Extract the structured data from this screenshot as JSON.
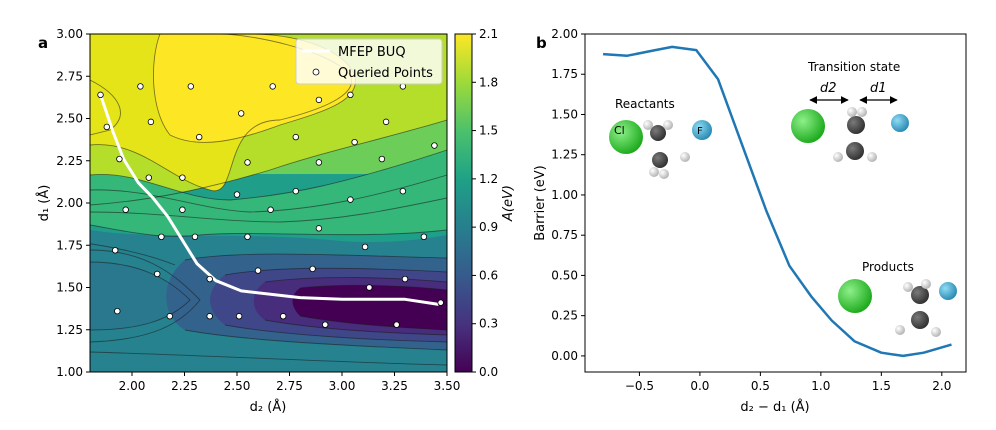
{
  "chart_data": [
    {
      "panel_label": "a",
      "type": "contour",
      "xlabel": "d₂ (Å)",
      "ylabel": "d₁ (Å)",
      "xlim": [
        1.8,
        3.5
      ],
      "ylim": [
        1.0,
        3.0
      ],
      "xticks": [
        "2.00",
        "2.25",
        "2.50",
        "2.75",
        "3.00",
        "3.25",
        "3.50"
      ],
      "yticks": [
        "1.00",
        "1.25",
        "1.50",
        "1.75",
        "2.00",
        "2.25",
        "2.50",
        "2.75",
        "3.00"
      ],
      "colorbar": {
        "label": "A(eV)",
        "range": [
          0.0,
          2.1
        ],
        "ticks": [
          "0.0",
          "0.3",
          "0.6",
          "0.9",
          "1.2",
          "1.5",
          "1.8",
          "2.1"
        ],
        "colormap": "viridis"
      },
      "legend": {
        "position": "top-right",
        "entries": [
          "MFEP BUQ",
          "Queried Points"
        ]
      },
      "series": [
        {
          "name": "MFEP BUQ",
          "kind": "line",
          "color": "#ffffff",
          "points": [
            [
              1.85,
              2.64
            ],
            [
              1.91,
              2.42
            ],
            [
              1.96,
              2.26
            ],
            [
              2.03,
              2.12
            ],
            [
              2.1,
              2.03
            ],
            [
              2.17,
              1.92
            ],
            [
              2.24,
              1.78
            ],
            [
              2.31,
              1.64
            ],
            [
              2.4,
              1.54
            ],
            [
              2.52,
              1.48
            ],
            [
              2.8,
              1.44
            ],
            [
              3.0,
              1.43
            ],
            [
              3.3,
              1.43
            ],
            [
              3.46,
              1.4
            ]
          ]
        },
        {
          "name": "Queried Points",
          "kind": "scatter",
          "color": "#ffffff",
          "points": [
            [
              1.85,
              2.64
            ],
            [
              1.88,
              2.45
            ],
            [
              1.94,
              2.26
            ],
            [
              2.04,
              2.69
            ],
            [
              2.09,
              2.48
            ],
            [
              2.08,
              2.15
            ],
            [
              1.97,
              1.96
            ],
            [
              2.28,
              2.69
            ],
            [
              2.32,
              2.39
            ],
            [
              2.24,
              2.15
            ],
            [
              2.24,
              1.96
            ],
            [
              2.52,
              2.53
            ],
            [
              2.55,
              2.24
            ],
            [
              2.5,
              2.05
            ],
            [
              2.67,
              2.69
            ],
            [
              2.78,
              2.39
            ],
            [
              2.89,
              2.61
            ],
            [
              2.89,
              2.24
            ],
            [
              3.04,
              2.64
            ],
            [
              3.06,
              2.36
            ],
            [
              3.19,
              2.26
            ],
            [
              3.21,
              2.48
            ],
            [
              3.29,
              2.69
            ],
            [
              3.44,
              2.34
            ],
            [
              1.92,
              1.72
            ],
            [
              2.12,
              1.58
            ],
            [
              2.14,
              1.8
            ],
            [
              2.3,
              1.8
            ],
            [
              2.37,
              1.55
            ],
            [
              2.55,
              1.8
            ],
            [
              2.66,
              1.96
            ],
            [
              2.78,
              2.07
            ],
            [
              2.89,
              1.85
            ],
            [
              3.04,
              2.02
            ],
            [
              3.29,
              2.07
            ],
            [
              3.11,
              1.74
            ],
            [
              3.39,
              1.8
            ],
            [
              2.6,
              1.6
            ],
            [
              2.86,
              1.61
            ],
            [
              3.13,
              1.5
            ],
            [
              3.3,
              1.55
            ],
            [
              3.47,
              1.41
            ],
            [
              1.93,
              1.36
            ],
            [
              2.18,
              1.33
            ],
            [
              2.37,
              1.33
            ],
            [
              2.51,
              1.33
            ],
            [
              2.72,
              1.33
            ],
            [
              2.92,
              1.28
            ],
            [
              3.26,
              1.28
            ]
          ]
        }
      ]
    },
    {
      "panel_label": "b",
      "type": "line",
      "xlabel": "d₂ − d₁ (Å)",
      "ylabel": "Barrier (eV)",
      "xlim": [
        -0.95,
        2.2
      ],
      "ylim": [
        -0.1,
        2.0
      ],
      "xticks": [
        "−0.5",
        "0.0",
        "0.5",
        "1.0",
        "1.5",
        "2.0"
      ],
      "yticks": [
        "0.00",
        "0.25",
        "0.50",
        "0.75",
        "1.00",
        "1.25",
        "1.50",
        "1.75",
        "2.00"
      ],
      "series": [
        {
          "name": "",
          "color": "#1f77b4",
          "x": [
            -0.8,
            -0.6,
            -0.4,
            -0.23,
            -0.03,
            0.15,
            0.33,
            0.55,
            0.74,
            0.92,
            1.09,
            1.28,
            1.5,
            1.68,
            1.85,
            2.08
          ],
          "y": [
            1.875,
            1.865,
            1.895,
            1.92,
            1.9,
            1.72,
            1.35,
            0.9,
            0.56,
            0.37,
            0.22,
            0.09,
            0.02,
            0.0,
            0.02,
            0.07
          ]
        }
      ],
      "annotations": {
        "reactants": "Reactants",
        "transition_state": "Transition state",
        "products": "Products",
        "distance_d2": "d2",
        "distance_d1": "d1",
        "atom_cl": "Cl",
        "atom_f": "F"
      }
    }
  ],
  "colors": {
    "line": "#1f77b4",
    "chlorine": "#2ec42a",
    "fluorine": "#3ba7cf",
    "carbon": "#454545",
    "hydrogen": "#e8e8e8"
  }
}
